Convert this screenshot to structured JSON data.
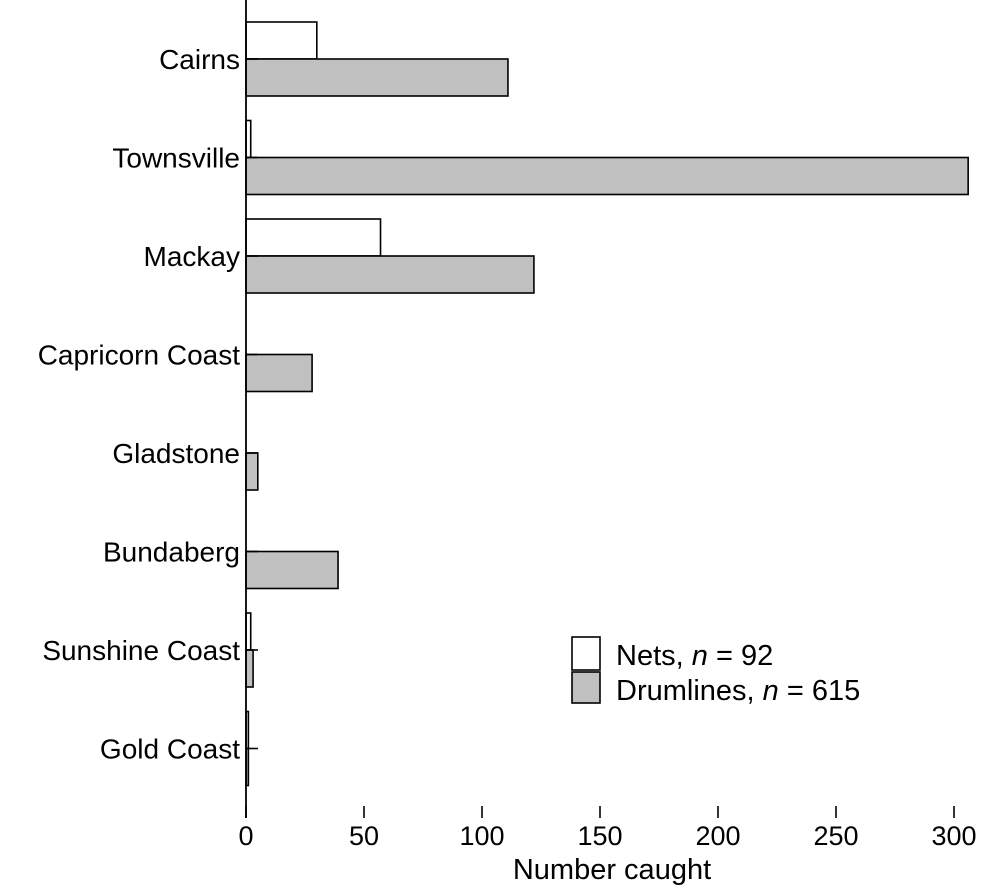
{
  "chart_data": {
    "type": "bar",
    "orientation": "horizontal",
    "categories": [
      "Cairns",
      "Townsville",
      "Mackay",
      "Capricorn Coast",
      "Gladstone",
      "Bundaberg",
      "Sunshine Coast",
      "Gold Coast"
    ],
    "series": [
      {
        "name": "Nets",
        "values": [
          30,
          2,
          57,
          0,
          0,
          0,
          2,
          1
        ],
        "color": "#ffffff"
      },
      {
        "name": "Drumlines",
        "values": [
          111,
          306,
          122,
          28,
          5,
          39,
          3,
          1
        ],
        "color": "#c0c0c0"
      }
    ],
    "xlabel": "Number caught",
    "xlim": [
      0,
      310
    ],
    "xticks": [
      0,
      50,
      100,
      150,
      200,
      250,
      300
    ],
    "grid": false,
    "legend": {
      "placement": "lower-right",
      "entries": [
        {
          "label": "Nets, ",
          "italic": "n",
          "suffix": " = 92"
        },
        {
          "label": "Drumlines, ",
          "italic": "n",
          "suffix": " = 615"
        }
      ]
    }
  }
}
